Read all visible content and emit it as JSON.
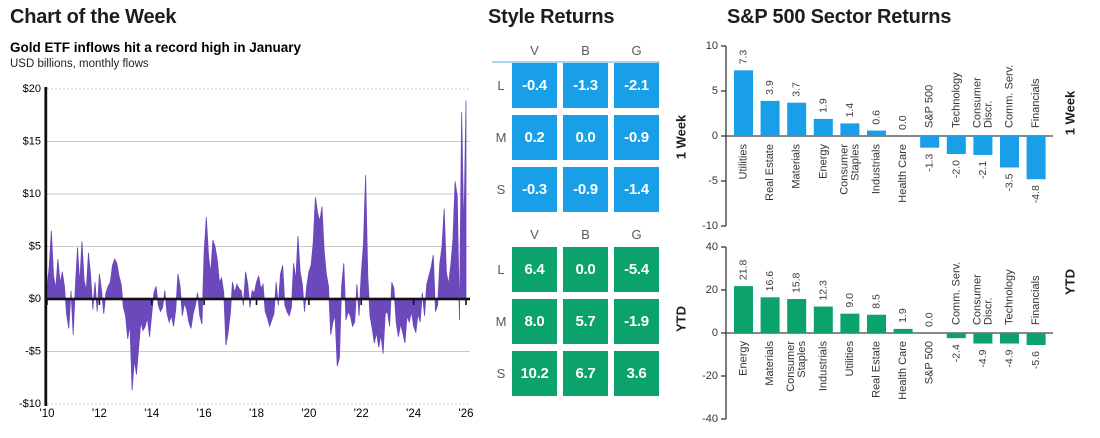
{
  "panels": {
    "chart_of_week": {
      "title": "Chart of the Week",
      "subtitle": "Gold ETF inflows hit a record high in January",
      "units": "USD billions, monthly flows"
    },
    "style_returns": {
      "title": "Style Returns"
    },
    "sector_returns": {
      "title": "S&P 500 Sector Returns"
    }
  },
  "colors": {
    "purple": "#6C49BB",
    "blue": "#189FE8",
    "green": "#0BA26C",
    "blue_rule": "#A6D7F5",
    "grid_gray": "#c9c9c9",
    "axis_black": "#111111",
    "label_dark": "#333333"
  },
  "chart_data": [
    {
      "id": "gold_etf_flows",
      "type": "area",
      "title": "Gold ETF inflows hit a record high in January",
      "ylabel": "USD billions, monthly flows",
      "x_start": "2010-01",
      "x_step_months": 1,
      "ylim": [
        -10,
        20
      ],
      "yticks": [
        {
          "label": "$20",
          "value": 20
        },
        {
          "label": "$15",
          "value": 15
        },
        {
          "label": "$10",
          "value": 10
        },
        {
          "label": "$5",
          "value": 5
        },
        {
          "label": "$0",
          "value": 0
        },
        {
          "label": "-$5",
          "value": -5
        },
        {
          "label": "-$10",
          "value": -10
        }
      ],
      "xticks": [
        {
          "label": "'10",
          "month_index": 0
        },
        {
          "label": "'12",
          "month_index": 24
        },
        {
          "label": "'14",
          "month_index": 48
        },
        {
          "label": "'16",
          "month_index": 72
        },
        {
          "label": "'18",
          "month_index": 96
        },
        {
          "label": "'20",
          "month_index": 120
        },
        {
          "label": "'22",
          "month_index": 144
        },
        {
          "label": "'24",
          "month_index": 168
        },
        {
          "label": "'26",
          "month_index": 192
        }
      ],
      "monthly_values": [
        1.2,
        3.0,
        6.5,
        2.2,
        1.0,
        3.8,
        1.5,
        2.6,
        1.2,
        -1.5,
        -2.8,
        0.8,
        -3.4,
        1.2,
        4.9,
        1.4,
        5.5,
        1.8,
        0.8,
        4.4,
        2.2,
        -1.0,
        1.6,
        -1.2,
        2.4,
        0.8,
        -1.4,
        0.6,
        1.2,
        1.6,
        3.2,
        3.8,
        3.4,
        2.2,
        1.4,
        -0.8,
        -1.6,
        -3.8,
        -2.4,
        -8.7,
        -5.8,
        -7.2,
        -4.6,
        -2.2,
        -3.0,
        -2.6,
        -1.8,
        -3.6,
        -1.4,
        0.6,
        1.2,
        -0.6,
        -1.2,
        -0.8,
        0.8,
        -1.4,
        -2.2,
        -1.6,
        -2.6,
        -1.0,
        2.4,
        1.2,
        -1.6,
        -0.4,
        -1.0,
        -2.2,
        -2.8,
        -1.4,
        -0.6,
        0.6,
        -1.6,
        -2.4,
        4.4,
        7.8,
        4.2,
        2.4,
        5.6,
        5.0,
        3.8,
        1.6,
        2.0,
        0.6,
        -4.4,
        -3.2,
        -1.4,
        1.6,
        0.6,
        1.4,
        1.0,
        0.8,
        -0.6,
        2.6,
        1.4,
        -0.8,
        0.8,
        0.6,
        1.6,
        2.2,
        1.0,
        1.4,
        -1.2,
        -1.8,
        -2.6,
        -2.0,
        -1.4,
        1.6,
        -0.6,
        2.4,
        3.2,
        -0.6,
        -1.2,
        -1.6,
        -0.8,
        3.4,
        1.8,
        6.0,
        2.6,
        1.4,
        -1.2,
        1.2,
        2.6,
        3.2,
        5.4,
        9.7,
        8.2,
        7.4,
        8.8,
        4.6,
        2.4,
        1.2,
        -3.4,
        -2.2,
        -1.6,
        -6.4,
        -5.6,
        1.2,
        3.4,
        -2.0,
        -1.2,
        -1.6,
        -2.6,
        -2.2,
        1.4,
        -1.6,
        2.4,
        5.2,
        11.8,
        2.2,
        -1.6,
        -2.8,
        -4.2,
        -3.2,
        -4.6,
        -3.4,
        -5.2,
        -1.4,
        -1.2,
        -2.6,
        1.6,
        1.0,
        -2.2,
        -3.6,
        -2.4,
        -3.2,
        -4.2,
        -1.6,
        -2.2,
        -1.2,
        -2.6,
        -3.2,
        -1.4,
        -2.2,
        0.6,
        -1.6,
        1.4,
        2.2,
        3.0,
        4.2,
        -1.2,
        -0.6,
        3.4,
        5.0,
        8.6,
        2.6,
        1.4,
        3.2,
        5.6,
        11.2,
        9.8,
        -2.0,
        17.8,
        6.2,
        18.9
      ]
    },
    {
      "id": "style_1week",
      "type": "heatmap",
      "period": "1 Week",
      "columns": [
        "V",
        "B",
        "G"
      ],
      "rows": [
        "L",
        "M",
        "S"
      ],
      "values": [
        [
          -0.4,
          -1.3,
          -2.1
        ],
        [
          0.2,
          0.0,
          -0.9
        ],
        [
          -0.3,
          -0.9,
          -1.4
        ]
      ],
      "cell_color": "#189FE8"
    },
    {
      "id": "style_ytd",
      "type": "heatmap",
      "period": "YTD",
      "columns": [
        "V",
        "B",
        "G"
      ],
      "rows": [
        "L",
        "M",
        "S"
      ],
      "values": [
        [
          6.4,
          0.0,
          -5.4
        ],
        [
          8.0,
          5.7,
          -1.9
        ],
        [
          10.2,
          6.7,
          3.6
        ]
      ],
      "cell_color": "#0BA26C"
    },
    {
      "id": "sector_1week",
      "type": "bar",
      "period": "1 Week",
      "categories": [
        "Utilities",
        "Real Estate",
        "Materials",
        "Energy",
        "Consumer\nStaples",
        "Industrials",
        "Health Care",
        "S&P 500",
        "Technology",
        "Consumer\nDiscr.",
        "Comm. Serv.",
        "Financials"
      ],
      "values": [
        7.3,
        3.9,
        3.7,
        1.9,
        1.4,
        0.6,
        0.0,
        -1.3,
        -2.0,
        -2.1,
        -3.5,
        -4.8
      ],
      "ylim": [
        -10,
        10
      ],
      "yticks": [
        10,
        5,
        0,
        -5,
        -10
      ],
      "bar_color": "#189FE8"
    },
    {
      "id": "sector_ytd",
      "type": "bar",
      "period": "YTD",
      "categories": [
        "Energy",
        "Materials",
        "Consumer\nStaples",
        "Industrials",
        "Utilities",
        "Real Estate",
        "Health Care",
        "S&P 500",
        "Comm. Serv.",
        "Consumer\nDiscr.",
        "Technology",
        "Financials"
      ],
      "values": [
        21.8,
        16.6,
        15.8,
        12.3,
        9.0,
        8.5,
        1.9,
        0.0,
        -2.4,
        -4.9,
        -4.9,
        -5.6
      ],
      "ylim": [
        -40,
        40
      ],
      "yticks": [
        40,
        20,
        0,
        -20,
        -40
      ],
      "bar_color": "#0BA26C"
    }
  ]
}
